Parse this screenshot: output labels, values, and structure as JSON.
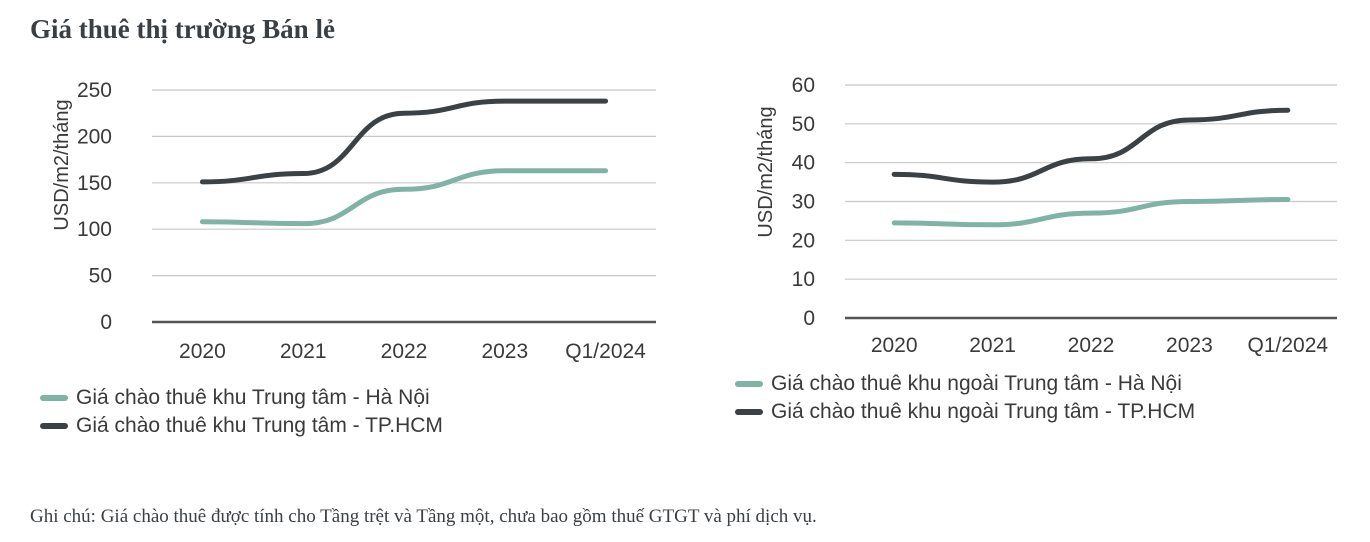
{
  "page": {
    "title": "Giá thuê thị trường Bán lẻ",
    "note": "Ghi chú: Giá chào thuê được tính cho Tầng trệt và Tầng một, chưa bao gồm thuế GTGT và phí dịch vụ."
  },
  "chart_data": [
    {
      "type": "line",
      "title": "",
      "ylabel": "USD/m2/tháng",
      "xlabel": "",
      "categories": [
        "2020",
        "2021",
        "2022",
        "2023",
        "Q1/2024"
      ],
      "ylim": [
        0,
        250
      ],
      "yticks": [
        "0",
        "50",
        "100",
        "150",
        "200",
        "250"
      ],
      "grid": true,
      "series": [
        {
          "name": "Giá chào thuê khu Trung tâm - Hà Nội",
          "color": "#7fb3a6",
          "values": [
            108,
            106,
            143,
            163,
            163
          ]
        },
        {
          "name": "Giá chào thuê khu Trung tâm - TP.HCM",
          "color": "#3b4145",
          "values": [
            151,
            160,
            225,
            238,
            238
          ]
        }
      ]
    },
    {
      "type": "line",
      "title": "",
      "ylabel": "USD/m2/tháng",
      "xlabel": "",
      "categories": [
        "2020",
        "2021",
        "2022",
        "2023",
        "Q1/2024"
      ],
      "ylim": [
        0,
        60
      ],
      "yticks": [
        "0",
        "10",
        "20",
        "30",
        "40",
        "50",
        "60"
      ],
      "grid": true,
      "series": [
        {
          "name": "Giá chào thuê khu ngoài Trung tâm - Hà Nội",
          "color": "#7fb3a6",
          "values": [
            24.5,
            24,
            27,
            30,
            30.5
          ]
        },
        {
          "name": "Giá chào thuê khu ngoài Trung tâm - TP.HCM",
          "color": "#3b4145",
          "values": [
            37,
            35,
            41,
            51,
            53.5
          ]
        }
      ]
    }
  ]
}
